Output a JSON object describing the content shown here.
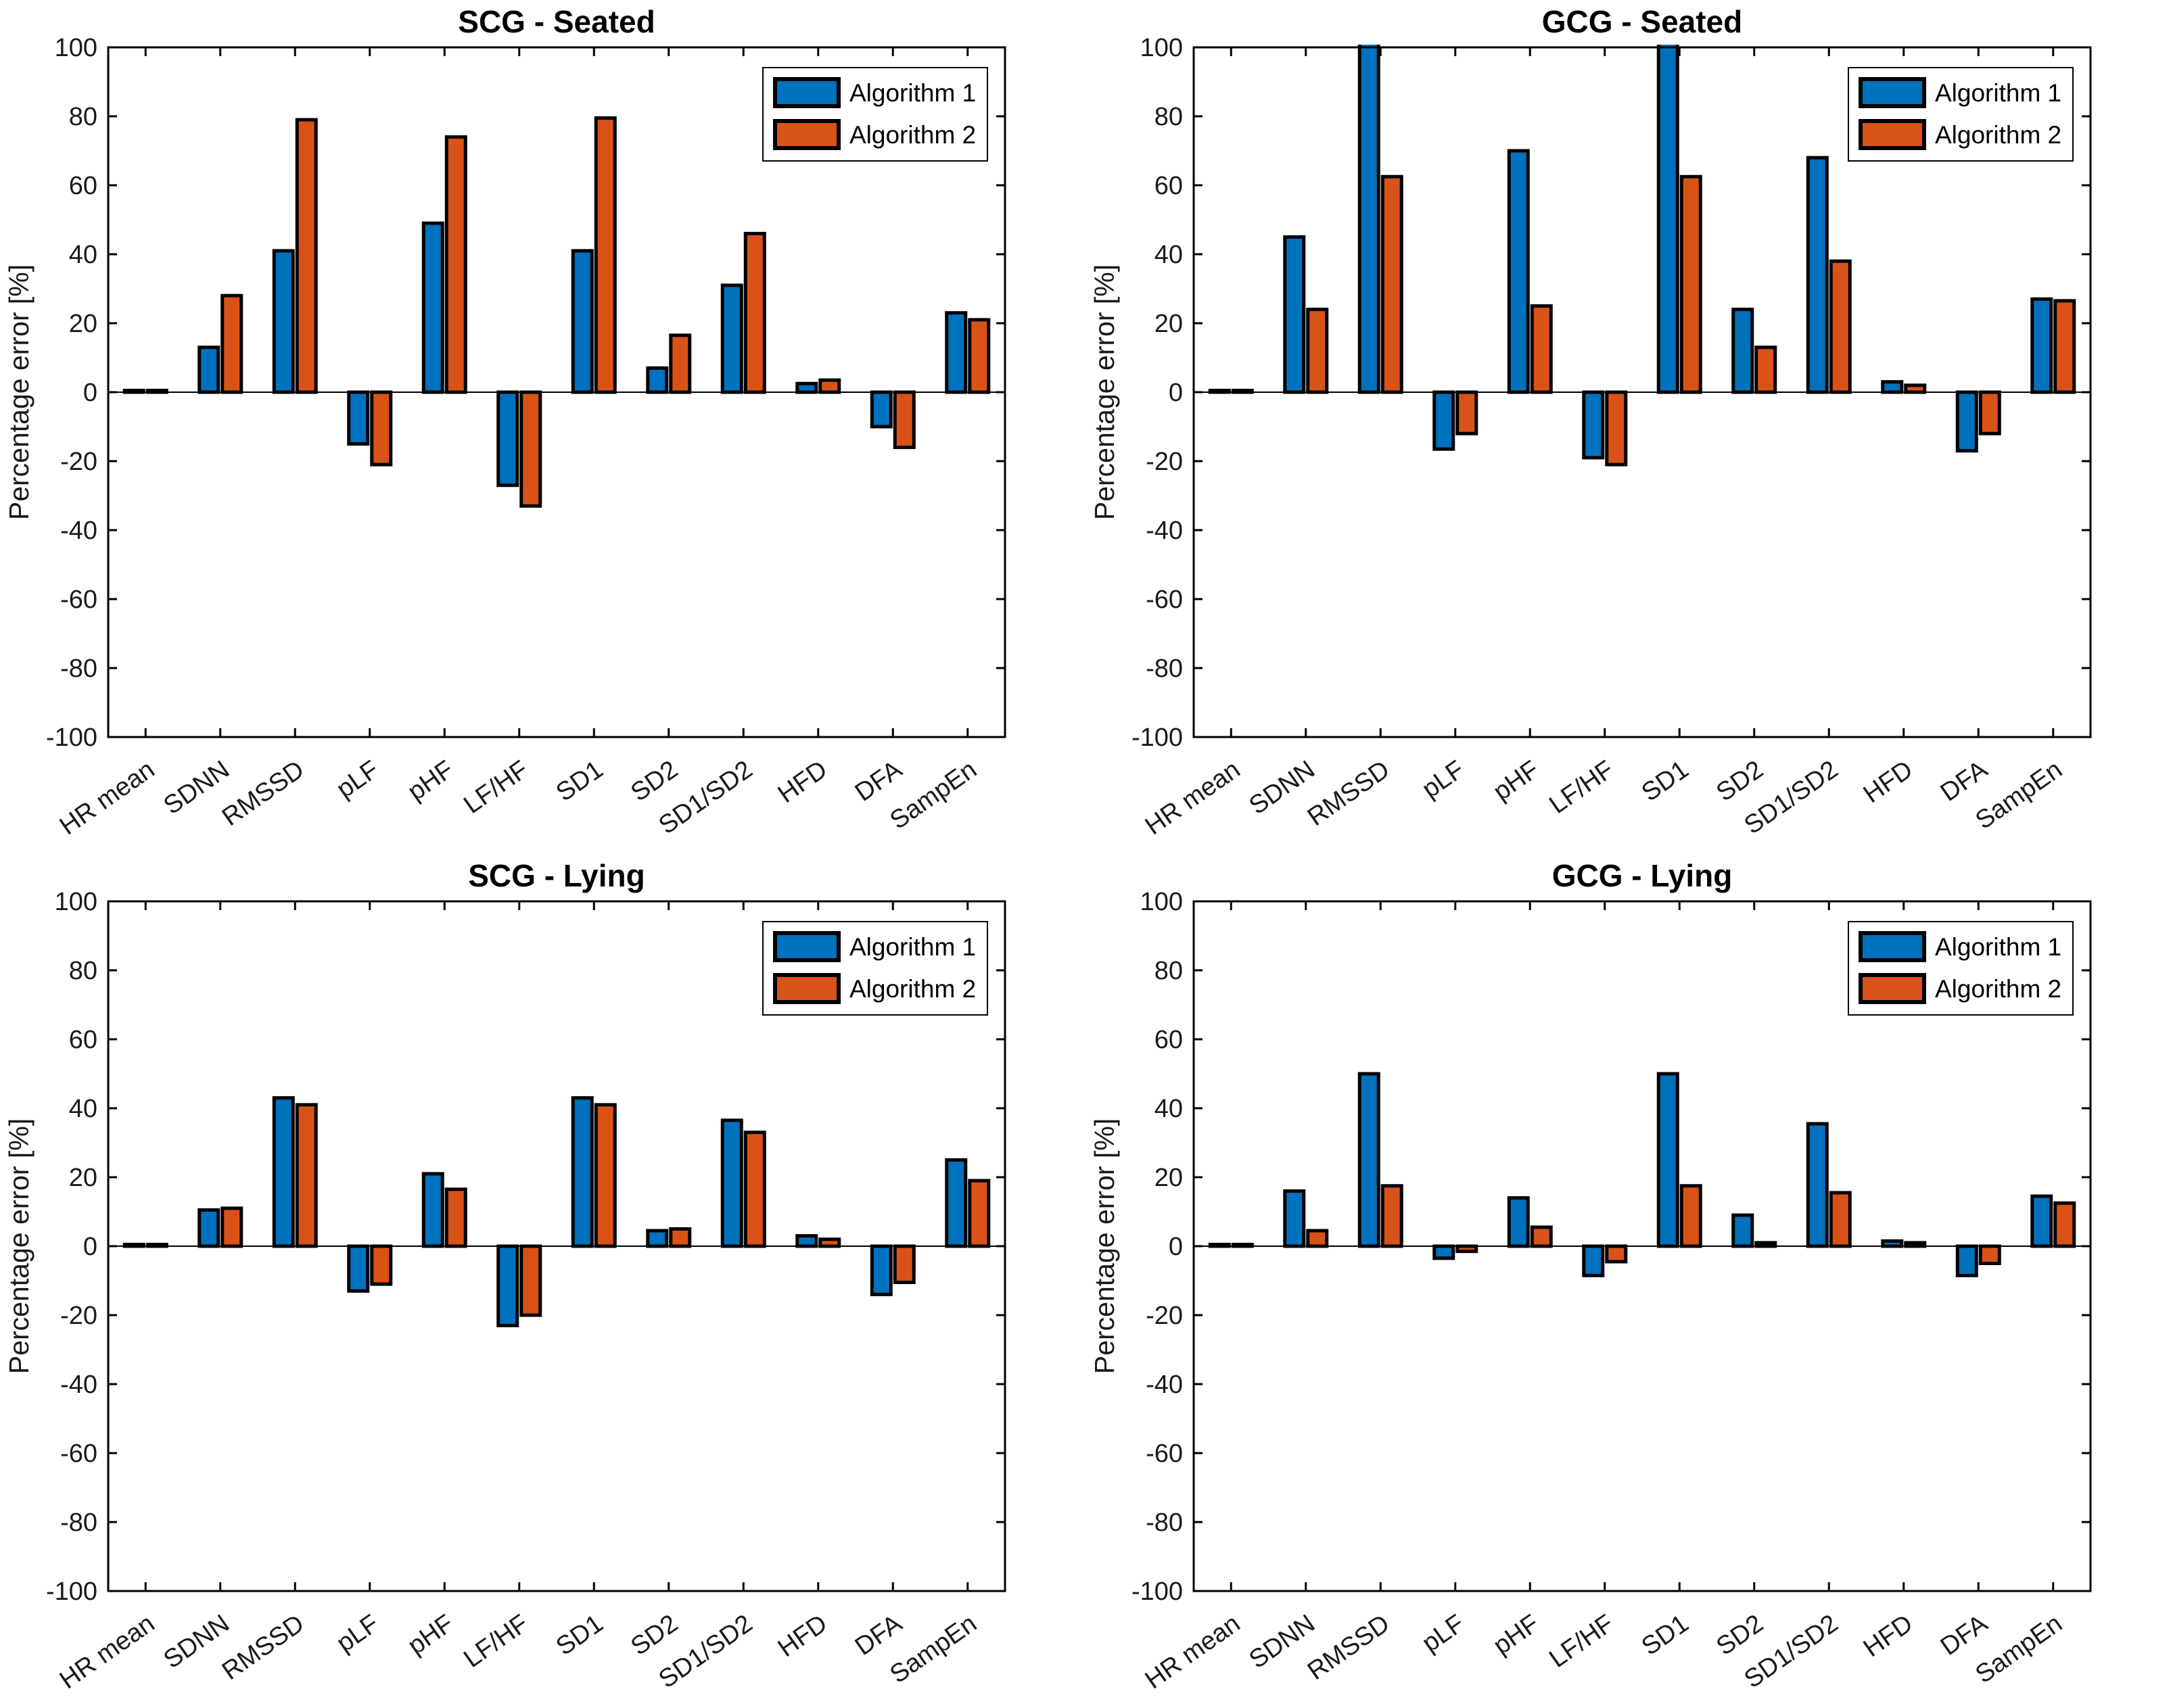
{
  "figure": {
    "background": "#ffffff"
  },
  "colors": {
    "algorithm1": "#0072BD",
    "algorithm2": "#D95319",
    "bar_edge": "#000000",
    "axis": "#000000",
    "tick_label": "#1a1a1a",
    "legend_edge": "#000000",
    "legend_fill": "#ffffff"
  },
  "legend": {
    "labels": [
      "Algorithm 1",
      "Algorithm 2"
    ],
    "position": "top-right"
  },
  "ylabel": "Percentage error [%]",
  "categories": [
    "HR mean",
    "SDNN",
    "RMSSD",
    "pLF",
    "pHF",
    "LF/HF",
    "SD1",
    "SD2",
    "SD1/SD2",
    "HFD",
    "DFA",
    "SampEn"
  ],
  "chart_data": [
    {
      "type": "bar",
      "title": "SCG - Seated",
      "ylabel": "Percentage error [%]",
      "ylim": [
        -100,
        100
      ],
      "yticks": [
        -100,
        -80,
        -60,
        -40,
        -20,
        0,
        20,
        40,
        60,
        80,
        100
      ],
      "grid": false,
      "legend_position": "top-right",
      "categories": [
        "HR mean",
        "SDNN",
        "RMSSD",
        "pLF",
        "pHF",
        "LF/HF",
        "SD1",
        "SD2",
        "SD1/SD2",
        "HFD",
        "DFA",
        "SampEn"
      ],
      "series": [
        {
          "name": "Algorithm 1",
          "values": [
            0.5,
            13,
            41,
            -15,
            49,
            -27,
            41,
            7,
            31,
            2.5,
            -10,
            23
          ]
        },
        {
          "name": "Algorithm 2",
          "values": [
            0.5,
            28,
            79,
            -21,
            74,
            -33,
            79.5,
            16.5,
            46,
            3.5,
            -16,
            21
          ]
        }
      ],
      "clipped_above": {
        "series": "",
        "categories": []
      }
    },
    {
      "type": "bar",
      "title": "GCG - Seated",
      "ylabel": "Percentage error [%]",
      "ylim": [
        -100,
        100
      ],
      "yticks": [
        -100,
        -80,
        -60,
        -40,
        -20,
        0,
        20,
        40,
        60,
        80,
        100
      ],
      "grid": false,
      "legend_position": "top-right",
      "categories": [
        "HR mean",
        "SDNN",
        "RMSSD",
        "pLF",
        "pHF",
        "LF/HF",
        "SD1",
        "SD2",
        "SD1/SD2",
        "HFD",
        "DFA",
        "SampEn"
      ],
      "series": [
        {
          "name": "Algorithm 1",
          "values": [
            0.5,
            45,
            100,
            -16.5,
            70,
            -19,
            100,
            24,
            68,
            3,
            -17,
            27
          ]
        },
        {
          "name": "Algorithm 2",
          "values": [
            0.5,
            24,
            62.5,
            -12,
            25,
            -21,
            62.5,
            13,
            38,
            2,
            -12,
            26.5
          ]
        }
      ],
      "clipped_above": {
        "series": "Algorithm 1",
        "categories": [
          "RMSSD",
          "SD1"
        ]
      }
    },
    {
      "type": "bar",
      "title": "SCG - Lying",
      "ylabel": "Percentage error [%]",
      "ylim": [
        -100,
        100
      ],
      "yticks": [
        -100,
        -80,
        -60,
        -40,
        -20,
        0,
        20,
        40,
        60,
        80,
        100
      ],
      "grid": false,
      "legend_position": "top-right",
      "categories": [
        "HR mean",
        "SDNN",
        "RMSSD",
        "pLF",
        "pHF",
        "LF/HF",
        "SD1",
        "SD2",
        "SD1/SD2",
        "HFD",
        "DFA",
        "SampEn"
      ],
      "series": [
        {
          "name": "Algorithm 1",
          "values": [
            0.5,
            10.5,
            43,
            -13,
            21,
            -23,
            43,
            4.5,
            36.5,
            3,
            -14,
            25
          ]
        },
        {
          "name": "Algorithm 2",
          "values": [
            0.5,
            11,
            41,
            -11,
            16.5,
            -20,
            41,
            5,
            33,
            2,
            -10.5,
            19
          ]
        }
      ],
      "clipped_above": {
        "series": "",
        "categories": []
      }
    },
    {
      "type": "bar",
      "title": "GCG - Lying",
      "ylabel": "Percentage error [%]",
      "ylim": [
        -100,
        100
      ],
      "yticks": [
        -100,
        -80,
        -60,
        -40,
        -20,
        0,
        20,
        40,
        60,
        80,
        100
      ],
      "grid": false,
      "legend_position": "top-right",
      "categories": [
        "HR mean",
        "SDNN",
        "RMSSD",
        "pLF",
        "pHF",
        "LF/HF",
        "SD1",
        "SD2",
        "SD1/SD2",
        "HFD",
        "DFA",
        "SampEn"
      ],
      "series": [
        {
          "name": "Algorithm 1",
          "values": [
            0.5,
            16,
            50,
            -3.5,
            14,
            -8.5,
            50,
            9,
            35.5,
            1.5,
            -8.5,
            14.5
          ]
        },
        {
          "name": "Algorithm 2",
          "values": [
            0.5,
            4.5,
            17.5,
            -1.5,
            5.5,
            -4.5,
            17.5,
            1,
            15.5,
            1,
            -5,
            12.5
          ]
        }
      ],
      "clipped_above": {
        "series": "",
        "categories": []
      }
    }
  ]
}
